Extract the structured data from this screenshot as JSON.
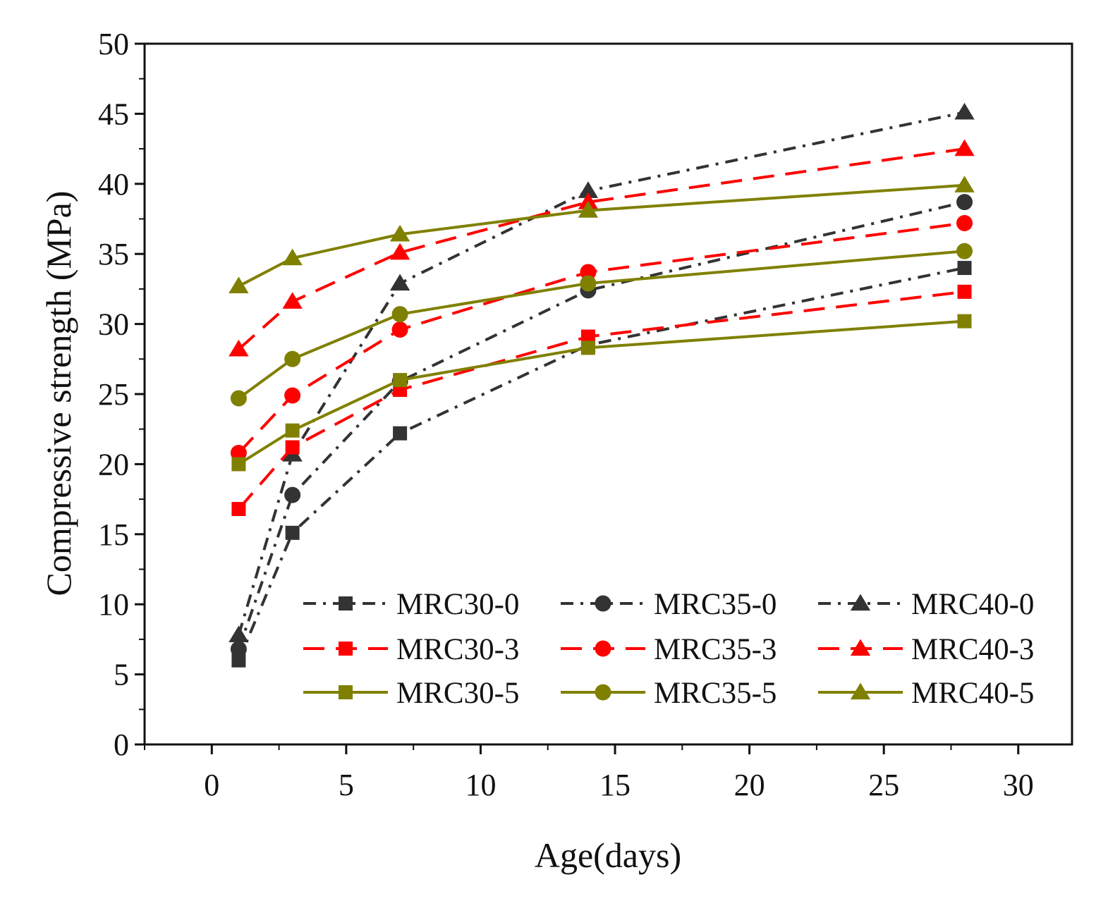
{
  "chart_data": {
    "type": "line",
    "title": "",
    "xlabel": "Age(days)",
    "ylabel": "Compressive strength (MPa)",
    "xlim": [
      -2.5,
      32
    ],
    "ylim": [
      0,
      50
    ],
    "xticks": [
      0,
      5,
      10,
      15,
      20,
      25,
      30
    ],
    "yticks": [
      0,
      5,
      10,
      15,
      20,
      25,
      30,
      35,
      40,
      45,
      50
    ],
    "x": [
      1,
      3,
      7,
      14,
      28
    ],
    "legend_position": "bottom-right",
    "legend_columns": 3,
    "series": [
      {
        "name": "MRC30-0",
        "values": [
          6.0,
          15.1,
          22.2,
          28.5,
          34.0
        ],
        "color": "#333333",
        "style": "dashdot",
        "marker": "square"
      },
      {
        "name": "MRC35-0",
        "values": [
          6.8,
          17.8,
          25.9,
          32.4,
          38.7
        ],
        "color": "#333333",
        "style": "dashdot",
        "marker": "circle"
      },
      {
        "name": "MRC40-0",
        "values": [
          7.8,
          20.7,
          32.9,
          39.5,
          45.1
        ],
        "color": "#333333",
        "style": "dashdot",
        "marker": "triangle"
      },
      {
        "name": "MRC30-3",
        "values": [
          16.8,
          21.2,
          25.3,
          29.1,
          32.3
        ],
        "color": "#ff0000",
        "style": "dashed",
        "marker": "square"
      },
      {
        "name": "MRC35-3",
        "values": [
          20.8,
          24.9,
          29.6,
          33.7,
          37.2
        ],
        "color": "#ff0000",
        "style": "dashed",
        "marker": "circle"
      },
      {
        "name": "MRC40-3",
        "values": [
          28.2,
          31.6,
          35.1,
          38.7,
          42.5
        ],
        "color": "#ff0000",
        "style": "dashed",
        "marker": "triangle"
      },
      {
        "name": "MRC30-5",
        "values": [
          20.0,
          22.4,
          26.0,
          28.3,
          30.2
        ],
        "color": "#808000",
        "style": "solid",
        "marker": "square"
      },
      {
        "name": "MRC35-5",
        "values": [
          24.7,
          27.5,
          30.7,
          32.9,
          35.2
        ],
        "color": "#808000",
        "style": "solid",
        "marker": "circle"
      },
      {
        "name": "MRC40-5",
        "values": [
          32.7,
          34.7,
          36.4,
          38.1,
          39.9
        ],
        "color": "#808000",
        "style": "solid",
        "marker": "triangle"
      }
    ]
  }
}
